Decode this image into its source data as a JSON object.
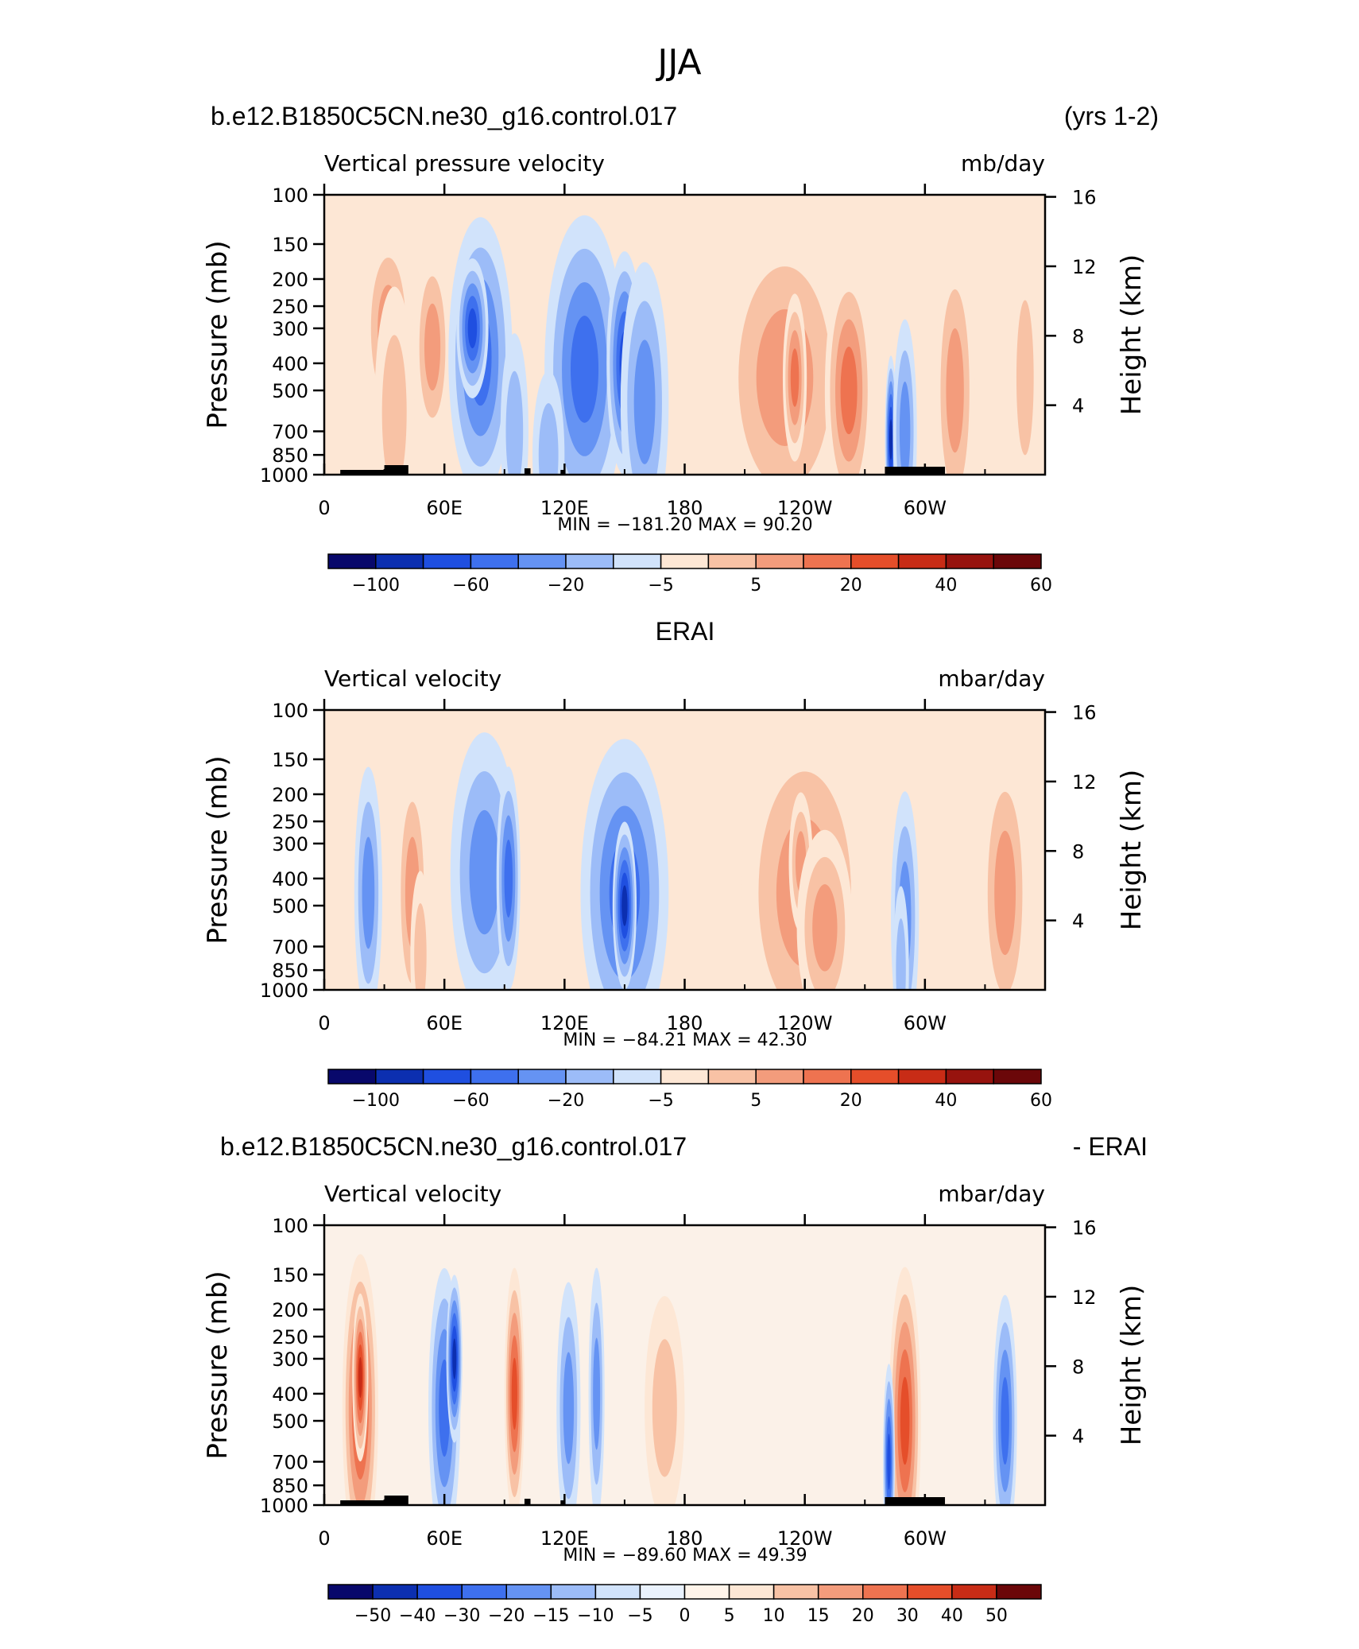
{
  "figure": {
    "title": "JJA"
  },
  "chart_data": [
    {
      "type": "heatmap",
      "left_title": "b.e12.B1850C5CN.ne30_g16.control.017",
      "right_title": "(yrs 1-2)",
      "variable": "Vertical pressure velocity",
      "units": "mb/day",
      "ylabel": "Pressure (mb)",
      "ylabel_right": "Height (km)",
      "y_ticks": [
        "100",
        "150",
        "200",
        "250",
        "300",
        "400",
        "500",
        "700",
        "850",
        "1000"
      ],
      "y_right_ticks": [
        "16",
        "12",
        "8",
        "4"
      ],
      "x_ticks": [
        "0",
        "60E",
        "120E",
        "180",
        "120W",
        "60W"
      ],
      "min_max": "MIN = −181.20   MAX =   90.20",
      "colorbar": {
        "labels": [
          "−100",
          "−60",
          "−20",
          "−5",
          "5",
          "20",
          "40",
          "60"
        ],
        "colors": [
          "#08086b",
          "#0c2fb0",
          "#1f4fe0",
          "#3e70ee",
          "#6593f3",
          "#9cbcf8",
          "#d1e3fb",
          "#fde7d5",
          "#f8c2a5",
          "#f39c7c",
          "#ee7350",
          "#e54e2a",
          "#c82c16",
          "#97130e",
          "#6b0709"
        ]
      },
      "features": [
        {
          "x": 32,
          "p": 300,
          "w": 12,
          "d": 0.35,
          "v": 3
        },
        {
          "x": 54,
          "p": 350,
          "w": 9,
          "d": 0.35,
          "v": 3
        },
        {
          "x": 35,
          "p": 600,
          "w": 10,
          "d": 0.45,
          "v": 2
        },
        {
          "x": 78,
          "p": 380,
          "w": 16,
          "d": 0.5,
          "v": -4
        },
        {
          "x": 74,
          "p": 300,
          "w": 8,
          "d": 0.25,
          "v": -5
        },
        {
          "x": 95,
          "p": 700,
          "w": 7,
          "d": 0.35,
          "v": -2
        },
        {
          "x": 130,
          "p": 420,
          "w": 20,
          "d": 0.55,
          "v": -4
        },
        {
          "x": 150,
          "p": 400,
          "w": 9,
          "d": 0.4,
          "v": -5
        },
        {
          "x": 160,
          "p": 550,
          "w": 12,
          "d": 0.5,
          "v": -3
        },
        {
          "x": 112,
          "p": 850,
          "w": 8,
          "d": 0.3,
          "v": -2
        },
        {
          "x": 230,
          "p": 450,
          "w": 32,
          "d": 0.55,
          "v": 3
        },
        {
          "x": 235,
          "p": 450,
          "w": 6,
          "d": 0.3,
          "v": 4
        },
        {
          "x": 262,
          "p": 500,
          "w": 12,
          "d": 0.45,
          "v": 4
        },
        {
          "x": 283,
          "p": 750,
          "w": 3,
          "d": 0.3,
          "v": -6
        },
        {
          "x": 290,
          "p": 700,
          "w": 6,
          "d": 0.4,
          "v": -3
        },
        {
          "x": 315,
          "p": 500,
          "w": 10,
          "d": 0.5,
          "v": 3
        },
        {
          "x": 350,
          "p": 450,
          "w": 7,
          "d": 0.45,
          "v": 2
        }
      ]
    },
    {
      "type": "heatmap",
      "center_title": "ERAI",
      "variable": "Vertical velocity",
      "units": "mbar/day",
      "ylabel": "Pressure (mb)",
      "ylabel_right": "Height (km)",
      "y_ticks": [
        "100",
        "150",
        "200",
        "250",
        "300",
        "400",
        "500",
        "700",
        "850",
        "1000"
      ],
      "y_right_ticks": [
        "16",
        "12",
        "8",
        "4"
      ],
      "x_ticks": [
        "0",
        "60E",
        "120E",
        "180",
        "120W",
        "60W"
      ],
      "min_max": "MIN = −84.21   MAX =   42.30",
      "colorbar": {
        "labels": [
          "−100",
          "−60",
          "−20",
          "−5",
          "5",
          "20",
          "40",
          "60"
        ],
        "colors": [
          "#08086b",
          "#0c2fb0",
          "#1f4fe0",
          "#3e70ee",
          "#6593f3",
          "#9cbcf8",
          "#d1e3fb",
          "#fde7d5",
          "#f8c2a5",
          "#f39c7c",
          "#ee7350",
          "#e54e2a",
          "#c82c16",
          "#97130e",
          "#6b0709"
        ]
      },
      "features": [
        {
          "x": 22,
          "p": 450,
          "w": 7,
          "d": 0.45,
          "v": -3
        },
        {
          "x": 44,
          "p": 450,
          "w": 8,
          "d": 0.45,
          "v": 3
        },
        {
          "x": 48,
          "p": 750,
          "w": 5,
          "d": 0.3,
          "v": 2
        },
        {
          "x": 80,
          "p": 380,
          "w": 17,
          "d": 0.5,
          "v": -3
        },
        {
          "x": 92,
          "p": 400,
          "w": 6,
          "d": 0.4,
          "v": -4
        },
        {
          "x": 150,
          "p": 450,
          "w": 22,
          "d": 0.55,
          "v": -4
        },
        {
          "x": 150,
          "p": 500,
          "w": 6,
          "d": 0.3,
          "v": -6
        },
        {
          "x": 240,
          "p": 450,
          "w": 32,
          "d": 0.6,
          "v": 3
        },
        {
          "x": 238,
          "p": 350,
          "w": 6,
          "d": 0.25,
          "v": 3
        },
        {
          "x": 250,
          "p": 600,
          "w": 14,
          "d": 0.35,
          "v": 3
        },
        {
          "x": 290,
          "p": 550,
          "w": 7,
          "d": 0.45,
          "v": -3
        },
        {
          "x": 288,
          "p": 850,
          "w": 4,
          "d": 0.3,
          "v": -2
        },
        {
          "x": 340,
          "p": 450,
          "w": 12,
          "d": 0.5,
          "v": 3
        }
      ]
    },
    {
      "type": "heatmap",
      "left_title": "b.e12.B1850C5CN.ne30_g16.control.017",
      "right_title": "- ERAI",
      "variable": "Vertical velocity",
      "units": "mbar/day",
      "ylabel": "Pressure (mb)",
      "ylabel_right": "Height (km)",
      "y_ticks": [
        "100",
        "150",
        "200",
        "250",
        "300",
        "400",
        "500",
        "700",
        "850",
        "1000"
      ],
      "y_right_ticks": [
        "16",
        "12",
        "8",
        "4"
      ],
      "x_ticks": [
        "0",
        "60E",
        "120E",
        "180",
        "120W",
        "60W"
      ],
      "min_max": "MIN = −89.60   MAX =   49.39",
      "colorbar": {
        "labels": [
          "−50",
          "−40",
          "−30",
          "−20",
          "−15",
          "−10",
          "−5",
          "0",
          "5",
          "10",
          "15",
          "20",
          "30",
          "40",
          "50"
        ],
        "colors": [
          "#08086b",
          "#0c2fb0",
          "#1f4fe0",
          "#3e70ee",
          "#6593f3",
          "#9cbcf8",
          "#d1e3fb",
          "#eaf2fd",
          "#fff4ea",
          "#fde7d5",
          "#f8c2a5",
          "#f39c7c",
          "#ee7350",
          "#e54e2a",
          "#c82c16",
          "#6b0709"
        ]
      },
      "features": [
        {
          "x": 18,
          "p": 450,
          "w": 9,
          "d": 0.55,
          "v": 5
        },
        {
          "x": 18,
          "p": 350,
          "w": 4,
          "d": 0.3,
          "v": 6
        },
        {
          "x": 60,
          "p": 450,
          "w": 8,
          "d": 0.5,
          "v": -4
        },
        {
          "x": 65,
          "p": 300,
          "w": 4,
          "d": 0.3,
          "v": -6
        },
        {
          "x": 95,
          "p": 400,
          "w": 5,
          "d": 0.45,
          "v": 5
        },
        {
          "x": 122,
          "p": 450,
          "w": 6,
          "d": 0.45,
          "v": -3
        },
        {
          "x": 136,
          "p": 400,
          "w": 4,
          "d": 0.45,
          "v": -3
        },
        {
          "x": 170,
          "p": 450,
          "w": 10,
          "d": 0.4,
          "v": 2
        },
        {
          "x": 290,
          "p": 500,
          "w": 8,
          "d": 0.55,
          "v": 5
        },
        {
          "x": 282,
          "p": 700,
          "w": 3,
          "d": 0.35,
          "v": -5
        },
        {
          "x": 340,
          "p": 500,
          "w": 6,
          "d": 0.45,
          "v": -4
        }
      ]
    }
  ]
}
